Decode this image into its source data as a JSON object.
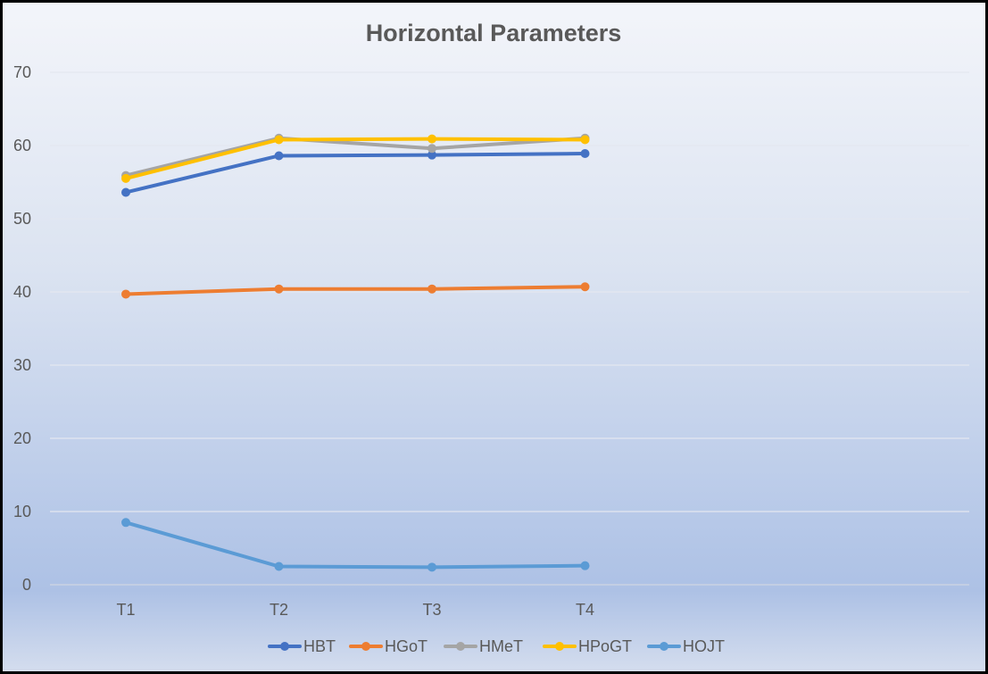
{
  "chart_data": {
    "type": "line",
    "title": "Horizontal Parameters",
    "xlabel": "",
    "ylabel": "",
    "categories": [
      "T1",
      "T2",
      "T3",
      "T4"
    ],
    "ylim": [
      0,
      70
    ],
    "yticks": [
      0,
      10,
      20,
      30,
      40,
      50,
      60,
      70
    ],
    "grid": true,
    "legend_position": "bottom",
    "markers": true,
    "series": [
      {
        "name": "HBT",
        "color": "#4472C4",
        "values": [
          53.6,
          58.6,
          58.7,
          58.9
        ]
      },
      {
        "name": "HGoT",
        "color": "#ED7D31",
        "values": [
          39.7,
          40.4,
          40.4,
          40.7
        ]
      },
      {
        "name": "HMeT",
        "color": "#A5A5A5",
        "values": [
          55.9,
          61.0,
          59.6,
          61.0
        ]
      },
      {
        "name": "HPoGT",
        "color": "#FFC000",
        "values": [
          55.5,
          60.8,
          60.9,
          60.8
        ]
      },
      {
        "name": "HOJT",
        "color": "#5B9BD5",
        "values": [
          8.5,
          2.5,
          2.4,
          2.6
        ]
      }
    ]
  }
}
